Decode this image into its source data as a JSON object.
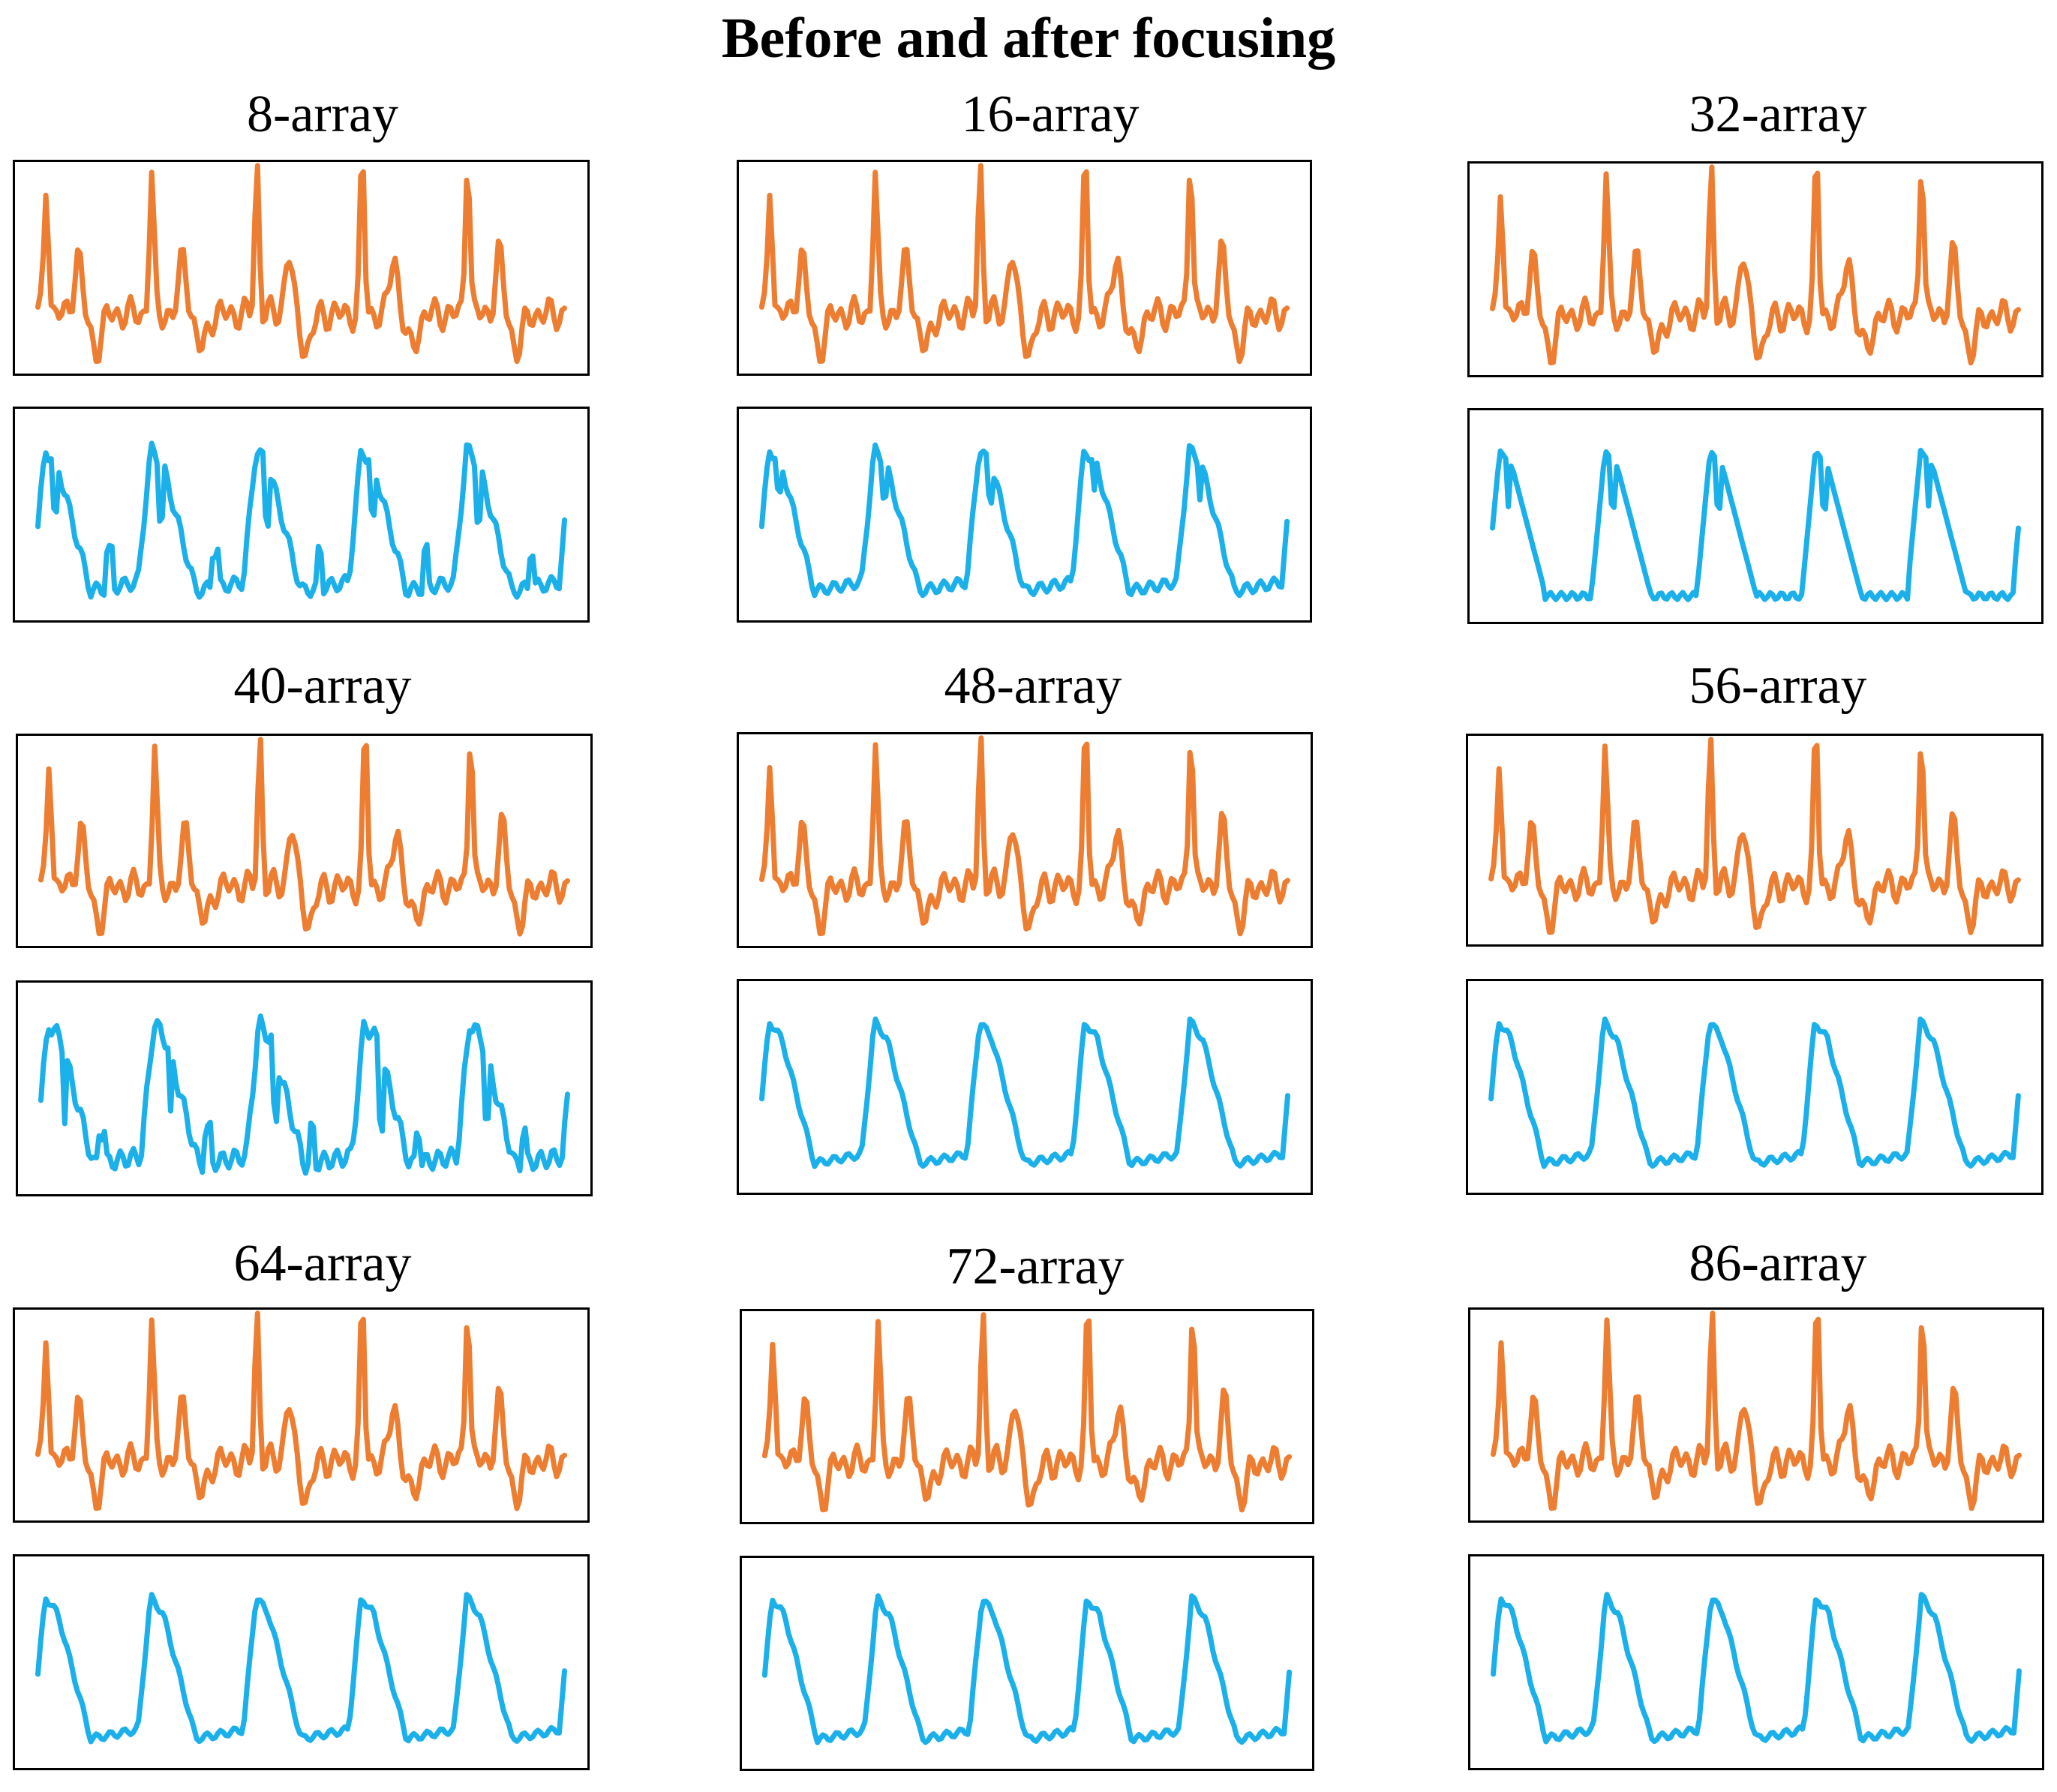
{
  "figure": {
    "title": "Before and after focusing"
  },
  "colors": {
    "before": "#ED7D31",
    "after": "#1BB0EA"
  },
  "chart_data": [
    {
      "type": "line",
      "title": "8-array",
      "series": [
        {
          "name": "before",
          "color": "#ED7D31",
          "values": [],
          "style": "before"
        },
        {
          "name": "after",
          "color": "#1BB0EA",
          "values": [],
          "style": "after_sharp_noisy"
        }
      ]
    },
    {
      "type": "line",
      "title": "16-array",
      "series": [
        {
          "name": "before",
          "color": "#ED7D31",
          "values": [],
          "style": "before"
        },
        {
          "name": "after",
          "color": "#1BB0EA",
          "values": [],
          "style": "after_sharp"
        }
      ]
    },
    {
      "type": "line",
      "title": "32-array",
      "series": [
        {
          "name": "before",
          "color": "#ED7D31",
          "values": [],
          "style": "before"
        },
        {
          "name": "after",
          "color": "#1BB0EA",
          "values": [],
          "style": "after_flatbottom"
        }
      ]
    },
    {
      "type": "line",
      "title": "40-array",
      "series": [
        {
          "name": "before",
          "color": "#ED7D31",
          "values": [],
          "style": "before"
        },
        {
          "name": "after",
          "color": "#1BB0EA",
          "values": [],
          "style": "after_noisy"
        }
      ]
    },
    {
      "type": "line",
      "title": "48-array",
      "series": [
        {
          "name": "before",
          "color": "#ED7D31",
          "values": [],
          "style": "before"
        },
        {
          "name": "after",
          "color": "#1BB0EA",
          "values": [],
          "style": "after_clean"
        }
      ]
    },
    {
      "type": "line",
      "title": "56-array",
      "series": [
        {
          "name": "before",
          "color": "#ED7D31",
          "values": [],
          "style": "before"
        },
        {
          "name": "after",
          "color": "#1BB0EA",
          "values": [],
          "style": "after_clean"
        }
      ]
    },
    {
      "type": "line",
      "title": "64-array",
      "series": [
        {
          "name": "before",
          "color": "#ED7D31",
          "values": [],
          "style": "before"
        },
        {
          "name": "after",
          "color": "#1BB0EA",
          "values": [],
          "style": "after_clean"
        }
      ]
    },
    {
      "type": "line",
      "title": "72-array",
      "series": [
        {
          "name": "before",
          "color": "#ED7D31",
          "values": [],
          "style": "before"
        },
        {
          "name": "after",
          "color": "#1BB0EA",
          "values": [],
          "style": "after_clean"
        }
      ]
    },
    {
      "type": "line",
      "title": "86-array",
      "series": [
        {
          "name": "before",
          "color": "#ED7D31",
          "values": [],
          "style": "before"
        },
        {
          "name": "after",
          "color": "#1BB0EA",
          "values": [],
          "style": "after_clean"
        }
      ]
    }
  ]
}
